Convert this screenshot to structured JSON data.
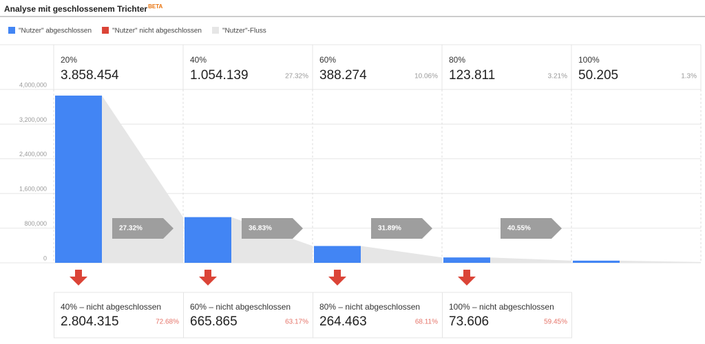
{
  "chart_data": {
    "type": "bar",
    "title": "Analyse mit geschlossenem Trichter",
    "badge": "BETA",
    "categories": [
      "20%",
      "40%",
      "60%",
      "80%",
      "100%"
    ],
    "series": [
      {
        "name": "\"Nutzer\" abgeschlossen",
        "color": "#4285f4",
        "values": [
          3858454,
          1054139,
          388274,
          123811,
          50205
        ],
        "value_labels": [
          "3.858.454",
          "1.054.139",
          "388.274",
          "123.811",
          "50.205"
        ]
      }
    ],
    "share_of_start": {
      "values": [
        27.32,
        10.06,
        3.21,
        1.3
      ],
      "value_labels": [
        "27.32%",
        "10.06%",
        "3.21%",
        "1.3%"
      ]
    },
    "flow": {
      "name": "\"Nutzer\"-Fluss",
      "color": "#e6e6e6",
      "values": [
        27.32,
        36.83,
        31.89,
        40.55
      ],
      "value_labels": [
        "27.32%",
        "36.83%",
        "31.89%",
        "40.55%"
      ],
      "arrow_color": "#9e9e9e"
    },
    "dropoff": {
      "name": "\"Nutzer\" nicht abgeschlossen",
      "color": "#db4437",
      "steps": [
        "40% – nicht abgeschlossen",
        "60% – nicht abgeschlossen",
        "80% – nicht abgeschlossen",
        "100% – nicht abgeschlossen"
      ],
      "values": [
        2804315,
        665865,
        264463,
        73606
      ],
      "value_labels": [
        "2.804.315",
        "665.865",
        "264.463",
        "73.606"
      ],
      "rates": [
        72.68,
        63.17,
        68.11,
        59.45
      ],
      "rate_labels": [
        "72.68%",
        "63.17%",
        "68.11%",
        "59.45%"
      ]
    },
    "ylim": [
      0,
      4000000
    ],
    "yticks": [
      0,
      {
        "value": 800000,
        "label": "800,000"
      },
      {
        "value": 1600000,
        "label": "1,600,000"
      },
      {
        "value": 2400000,
        "label": "2,400,000"
      },
      {
        "value": 3200000,
        "label": "3,200,000"
      },
      {
        "value": 4000000,
        "label": "4,000,000"
      }
    ],
    "grid": true
  }
}
